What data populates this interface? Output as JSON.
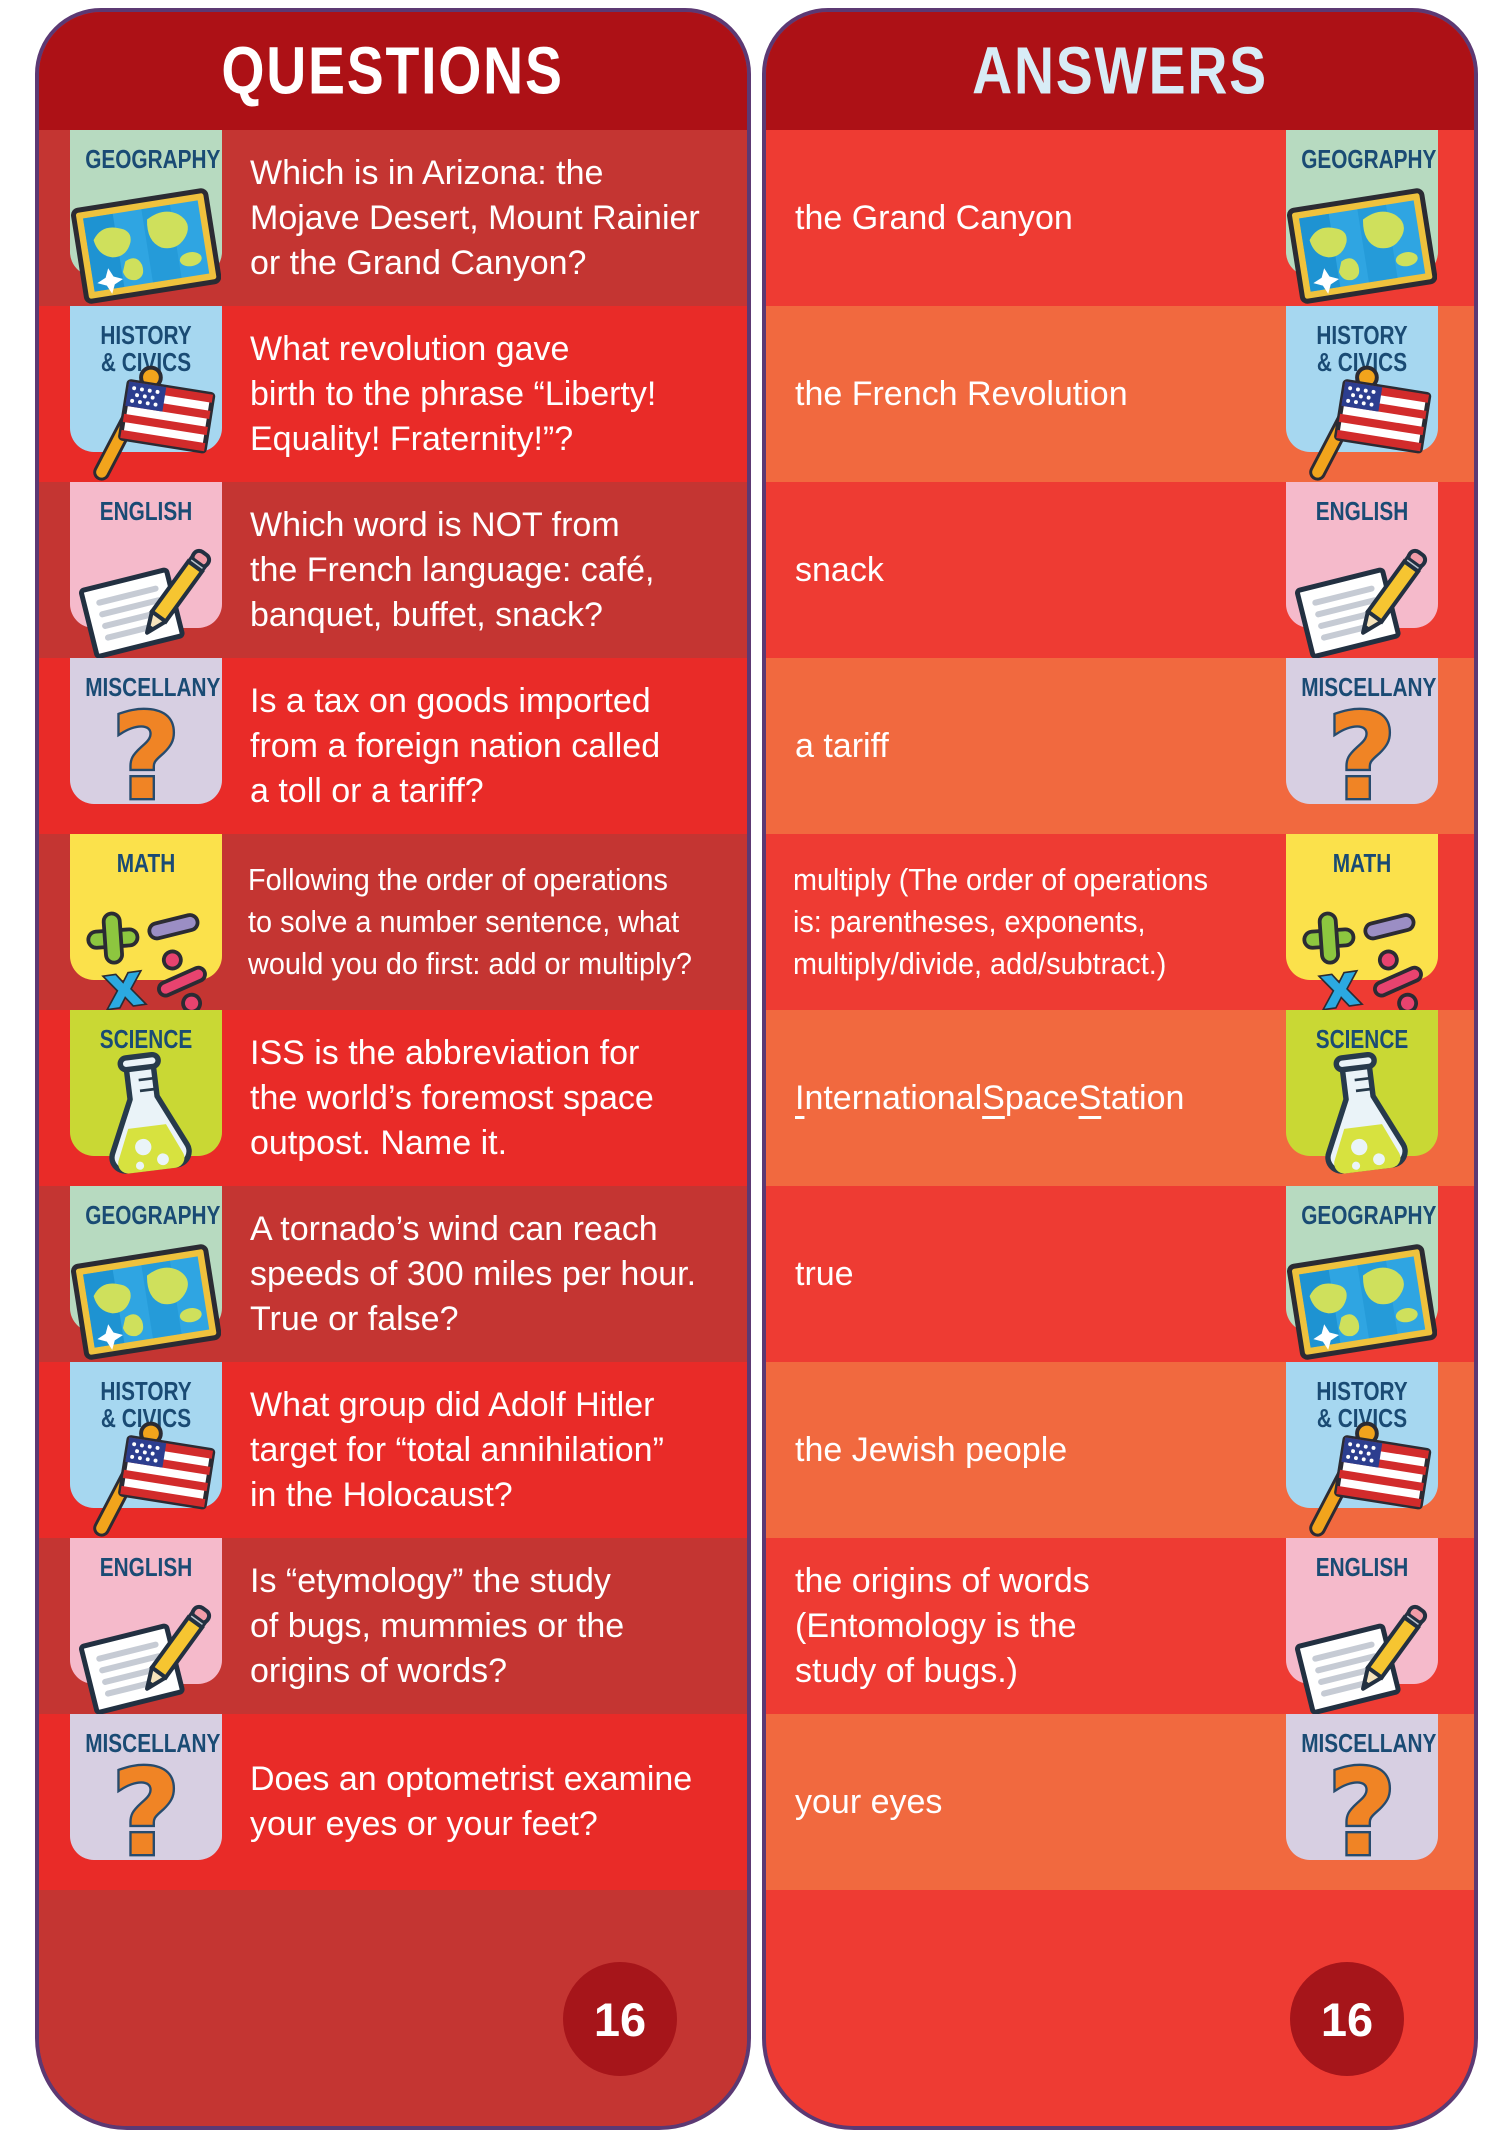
{
  "colors": {
    "header_bg": "#AD1116",
    "page_badge_bg": "#A6151A",
    "category_label_color": "#1A4B74",
    "card_outline": "#5C3973"
  },
  "categories": {
    "GEOGRAPHY": {
      "label": "GEOGRAPHY",
      "color": "#B7DAC0",
      "icon": "map-icon"
    },
    "HISTORY & CIVICS": {
      "label": "HISTORY\n& CIVICS",
      "color": "#A6D7F0",
      "icon": "flag-icon"
    },
    "ENGLISH": {
      "label": "ENGLISH",
      "color": "#F5BACB",
      "icon": "paper-pencil-icon"
    },
    "MISCELLANY": {
      "label": "MISCELLANY",
      "color": "#D7CFE2",
      "icon": "question-mark-icon"
    },
    "MATH": {
      "label": "MATH",
      "color": "#FBE14B",
      "icon": "math-symbols-icon"
    },
    "SCIENCE": {
      "label": "SCIENCE",
      "color": "#C9D834",
      "icon": "flask-icon"
    }
  },
  "questions_card": {
    "title": "QUESTIONS",
    "title_color": "#FFFFFF",
    "page_number": "16",
    "row_color_odd": "#C43532",
    "row_color_even": "#E92B28",
    "footer_color": "#C43532",
    "rows": [
      {
        "category": "GEOGRAPHY",
        "text": "Which is in Arizona: the\nMojave Desert, Mount Rainier\nor the Grand Canyon?"
      },
      {
        "category": "HISTORY & CIVICS",
        "text": "What revolution gave\nbirth to the phrase “Liberty!\nEquality! Fraternity!”?"
      },
      {
        "category": "ENGLISH",
        "text": "Which word is NOT from\nthe French language: café,\nbanquet, buffet, snack?"
      },
      {
        "category": "MISCELLANY",
        "text": "Is a tax on goods imported\nfrom a foreign nation called\na toll or a tariff?"
      },
      {
        "category": "MATH",
        "text": "Following the order of operations\nto solve a number sentence, what\nwould you do first: add or multiply?",
        "condensed": true
      },
      {
        "category": "SCIENCE",
        "text": "ISS is the abbreviation for\nthe world’s foremost space\noutpost. Name it."
      },
      {
        "category": "GEOGRAPHY",
        "text": "A tornado’s wind can reach\nspeeds of 300 miles per hour.\nTrue or false?"
      },
      {
        "category": "HISTORY & CIVICS",
        "text": "What group did Adolf Hitler\ntarget for “total annihilation”\nin the Holocaust?"
      },
      {
        "category": "ENGLISH",
        "text": "Is “etymology” the study\nof bugs, mummies or the\norigins of words?"
      },
      {
        "category": "MISCELLANY",
        "text": "Does an optometrist examine\nyour eyes or your feet?"
      }
    ]
  },
  "answers_card": {
    "title": "ANSWERS",
    "title_color": "#D8ECF6",
    "page_number": "16",
    "row_color_odd": "#EE3B33",
    "row_color_even": "#F1693F",
    "footer_color": "#EE3B33",
    "rows": [
      {
        "category": "GEOGRAPHY",
        "text": "the Grand Canyon"
      },
      {
        "category": "HISTORY & CIVICS",
        "text": "the French Revolution"
      },
      {
        "category": "ENGLISH",
        "text": "snack"
      },
      {
        "category": "MISCELLANY",
        "text": "a tariff"
      },
      {
        "category": "MATH",
        "text": "multiply (The order of operations\nis: parentheses, exponents,\nmultiply/divide, add/subtract.)",
        "condensed": true
      },
      {
        "category": "SCIENCE",
        "text": "International Space Station",
        "underline_initials": true
      },
      {
        "category": "GEOGRAPHY",
        "text": "true"
      },
      {
        "category": "HISTORY & CIVICS",
        "text": "the Jewish people"
      },
      {
        "category": "ENGLISH",
        "text": "the origins of words\n(Entomology is the\nstudy of bugs.)"
      },
      {
        "category": "MISCELLANY",
        "text": "your eyes"
      }
    ]
  }
}
